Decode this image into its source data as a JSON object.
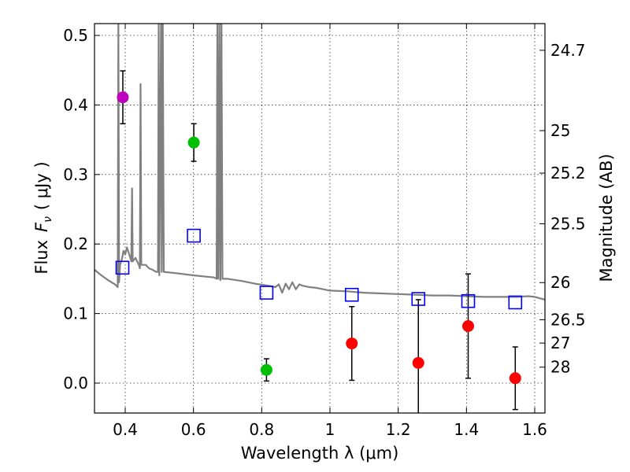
{
  "chart_data": {
    "type": "scatter",
    "xlabel": "Wavelength  λ (μm)",
    "ylabel_prefix": "Flux",
    "ylabel_symbol": "F",
    "ylabel_sub": "ν",
    "ylabel_unit": "( μJy )",
    "ylabel_right": "Magnitude (AB)",
    "xlim": [
      0.31,
      1.63
    ],
    "ylim": [
      -0.043,
      0.517
    ],
    "xticks": [
      {
        "value": 0.4,
        "label": "0.4"
      },
      {
        "value": 0.6,
        "label": "0.6"
      },
      {
        "value": 0.8,
        "label": "0.8"
      },
      {
        "value": 1.0,
        "label": "1"
      },
      {
        "value": 1.2,
        "label": "1.2"
      },
      {
        "value": 1.4,
        "label": "1.4"
      },
      {
        "value": 1.6,
        "label": "1.6"
      }
    ],
    "yticks": [
      {
        "value": 0.0,
        "label": "0.0"
      },
      {
        "value": 0.1,
        "label": "0.1"
      },
      {
        "value": 0.2,
        "label": "0.2"
      },
      {
        "value": 0.3,
        "label": "0.3"
      },
      {
        "value": 0.4,
        "label": "0.4"
      },
      {
        "value": 0.5,
        "label": "0.5"
      }
    ],
    "right_ticks": [
      {
        "mag": 24.7,
        "label": "24.7"
      },
      {
        "mag": 25.0,
        "label": "25"
      },
      {
        "mag": 25.2,
        "label": "25.2"
      },
      {
        "mag": 25.5,
        "label": "25.5"
      },
      {
        "mag": 26.0,
        "label": "26"
      },
      {
        "mag": 26.5,
        "label": "26.5"
      },
      {
        "mag": 27.0,
        "label": "27"
      },
      {
        "mag": 28.0,
        "label": "28"
      }
    ],
    "observed": [
      {
        "x": 0.393,
        "y": 0.411,
        "err": 0.038,
        "color": "#bf00bf"
      },
      {
        "x": 0.601,
        "y": 0.346,
        "err": 0.027,
        "color": "#00bf00"
      },
      {
        "x": 0.814,
        "y": 0.019,
        "err": 0.016,
        "color": "#00bf00"
      },
      {
        "x": 1.064,
        "y": 0.057,
        "err": 0.053,
        "color": "#ff0000"
      },
      {
        "x": 1.259,
        "y": 0.029,
        "err": 0.091,
        "color": "#ff0000"
      },
      {
        "x": 1.405,
        "y": 0.082,
        "err": 0.075,
        "color": "#ff0000"
      },
      {
        "x": 1.543,
        "y": 0.007,
        "err": 0.045,
        "color": "#ff0000"
      }
    ],
    "model_points": [
      {
        "x": 0.392,
        "y": 0.166
      },
      {
        "x": 0.601,
        "y": 0.212
      },
      {
        "x": 0.814,
        "y": 0.13
      },
      {
        "x": 1.064,
        "y": 0.127
      },
      {
        "x": 1.259,
        "y": 0.121
      },
      {
        "x": 1.405,
        "y": 0.118
      },
      {
        "x": 1.543,
        "y": 0.116
      }
    ],
    "sed_curve": [
      [
        0.31,
        0.163
      ],
      [
        0.33,
        0.155
      ],
      [
        0.35,
        0.148
      ],
      [
        0.37,
        0.142
      ],
      [
        0.378,
        0.138
      ],
      [
        0.38,
        0.52
      ],
      [
        0.382,
        0.145
      ],
      [
        0.385,
        0.17
      ],
      [
        0.39,
        0.178
      ],
      [
        0.395,
        0.19
      ],
      [
        0.4,
        0.185
      ],
      [
        0.405,
        0.195
      ],
      [
        0.41,
        0.188
      ],
      [
        0.415,
        0.18
      ],
      [
        0.418,
        0.175
      ],
      [
        0.42,
        0.28
      ],
      [
        0.422,
        0.175
      ],
      [
        0.43,
        0.18
      ],
      [
        0.44,
        0.17
      ],
      [
        0.443,
        0.165
      ],
      [
        0.445,
        0.43
      ],
      [
        0.447,
        0.17
      ],
      [
        0.46,
        0.17
      ],
      [
        0.47,
        0.165
      ],
      [
        0.48,
        0.163
      ],
      [
        0.49,
        0.16
      ],
      [
        0.496,
        0.16
      ],
      [
        0.498,
        0.52
      ],
      [
        0.5,
        0.155
      ],
      [
        0.505,
        0.52
      ],
      [
        0.507,
        0.16
      ],
      [
        0.51,
        0.52
      ],
      [
        0.513,
        0.16
      ],
      [
        0.55,
        0.158
      ],
      [
        0.6,
        0.155
      ],
      [
        0.64,
        0.153
      ],
      [
        0.66,
        0.152
      ],
      [
        0.668,
        0.15
      ],
      [
        0.67,
        0.52
      ],
      [
        0.673,
        0.15
      ],
      [
        0.676,
        0.52
      ],
      [
        0.679,
        0.148
      ],
      [
        0.682,
        0.52
      ],
      [
        0.685,
        0.15
      ],
      [
        0.7,
        0.15
      ],
      [
        0.74,
        0.147
      ],
      [
        0.78,
        0.143
      ],
      [
        0.82,
        0.14
      ],
      [
        0.84,
        0.138
      ],
      [
        0.85,
        0.142
      ],
      [
        0.86,
        0.13
      ],
      [
        0.87,
        0.143
      ],
      [
        0.88,
        0.135
      ],
      [
        0.89,
        0.145
      ],
      [
        0.9,
        0.135
      ],
      [
        0.91,
        0.142
      ],
      [
        0.92,
        0.14
      ],
      [
        0.94,
        0.138
      ],
      [
        0.96,
        0.137
      ],
      [
        0.98,
        0.135
      ],
      [
        1.0,
        0.133
      ],
      [
        1.05,
        0.132
      ],
      [
        1.1,
        0.13
      ],
      [
        1.15,
        0.129
      ],
      [
        1.2,
        0.128
      ],
      [
        1.25,
        0.127
      ],
      [
        1.3,
        0.126
      ],
      [
        1.35,
        0.126
      ],
      [
        1.4,
        0.125
      ],
      [
        1.45,
        0.124
      ],
      [
        1.5,
        0.124
      ],
      [
        1.55,
        0.124
      ],
      [
        1.58,
        0.125
      ],
      [
        1.6,
        0.124
      ],
      [
        1.63,
        0.12
      ]
    ],
    "colors": {
      "sed": "#808080",
      "model": "#0000ff",
      "errorbar": "#000000"
    }
  }
}
